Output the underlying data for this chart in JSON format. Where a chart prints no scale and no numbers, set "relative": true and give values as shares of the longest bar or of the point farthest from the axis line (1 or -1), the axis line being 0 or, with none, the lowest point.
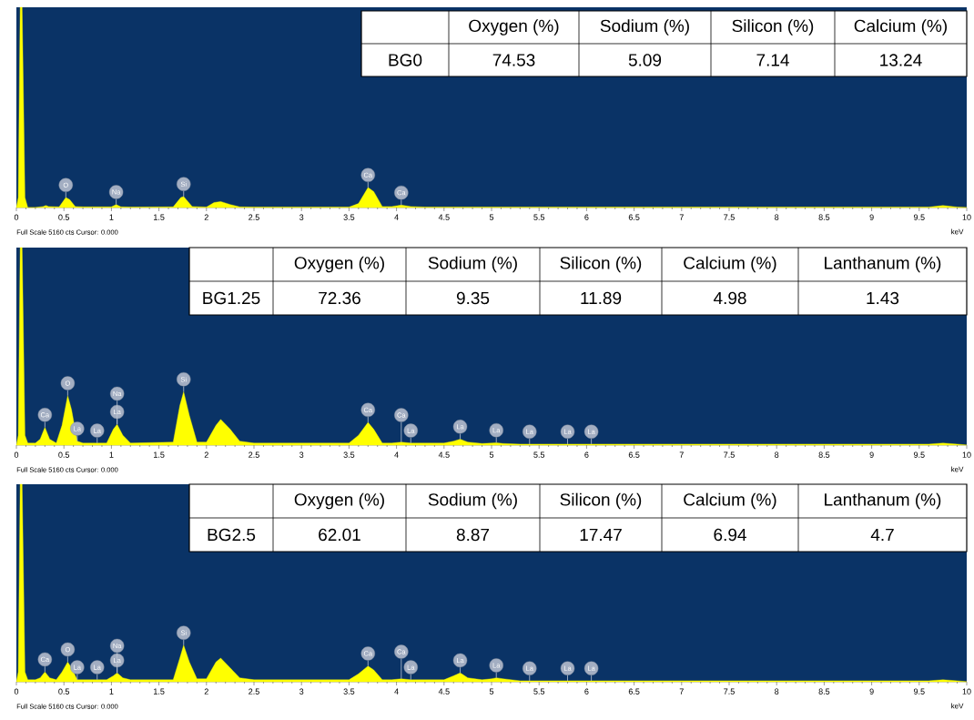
{
  "chart_data": [
    {
      "type": "area",
      "relative": true,
      "color": "#ffff00",
      "xlim": [
        0,
        10
      ],
      "xticks": [
        0,
        0.5,
        1,
        1.5,
        2,
        2.5,
        3,
        3.5,
        4,
        4.5,
        5,
        5.5,
        6,
        6.5,
        7,
        7.5,
        8,
        8.5,
        9,
        9.5,
        10
      ],
      "xlabel": "keV",
      "x": [
        0,
        0.02,
        0.04,
        0.06,
        0.09,
        0.12,
        0.2,
        0.28,
        0.31,
        0.34,
        0.45,
        0.52,
        0.56,
        0.62,
        0.7,
        1.0,
        1.05,
        1.1,
        1.2,
        1.65,
        1.73,
        1.76,
        1.85,
        2.0,
        2.08,
        2.15,
        2.25,
        2.35,
        2.5,
        3.5,
        3.6,
        3.7,
        3.76,
        3.85,
        3.95,
        4.05,
        4.15,
        4.3,
        9.6,
        9.75,
        9.9,
        10
      ],
      "values": [
        0,
        0.05,
        1,
        1,
        0.05,
        0,
        0,
        0.005,
        0.01,
        0.005,
        0.003,
        0.05,
        0.04,
        0.005,
        0.003,
        0.003,
        0.015,
        0.003,
        0.002,
        0.003,
        0.05,
        0.055,
        0.005,
        0.002,
        0.025,
        0.03,
        0.015,
        0.003,
        0.002,
        0.002,
        0.02,
        0.1,
        0.08,
        0.005,
        0.005,
        0.012,
        0.005,
        0.002,
        0.002,
        0.01,
        0.002,
        0
      ],
      "annotations": [
        "Full Scale 5160 cts Cursor: 0.000",
        {
          "text": "O",
          "x": 0.52,
          "y": 0.05
        },
        {
          "text": "Na",
          "x": 1.05,
          "y": 0.015
        },
        {
          "text": "Si",
          "x": 1.76,
          "y": 0.055
        },
        {
          "text": "Ca",
          "x": 3.7,
          "y": 0.1
        },
        {
          "text": "Ca",
          "x": 4.05,
          "y": 0.012
        }
      ]
    },
    {
      "type": "other",
      "title": "BG0",
      "categories": [
        "Oxygen (%)",
        "Sodium (%)",
        "Silicon (%)",
        "Calcium (%)"
      ],
      "values": [
        74.53,
        5.09,
        7.14,
        13.24
      ],
      "data_labels": true
    },
    {
      "type": "area",
      "relative": true,
      "color": "#ffff00",
      "xlim": [
        0,
        10
      ],
      "xticks": [
        0,
        0.5,
        1,
        1.5,
        2,
        2.5,
        3,
        3.5,
        4,
        4.5,
        5,
        5.5,
        6,
        6.5,
        7,
        7.5,
        8,
        8.5,
        9,
        9.5,
        10
      ],
      "xlabel": "keV",
      "x": [
        0,
        0.02,
        0.04,
        0.06,
        0.09,
        0.12,
        0.2,
        0.25,
        0.3,
        0.35,
        0.42,
        0.48,
        0.54,
        0.58,
        0.64,
        0.7,
        0.85,
        0.95,
        1.02,
        1.06,
        1.12,
        1.2,
        1.65,
        1.72,
        1.76,
        1.82,
        1.9,
        2.0,
        2.1,
        2.15,
        2.25,
        2.35,
        2.5,
        3.5,
        3.6,
        3.7,
        3.76,
        3.85,
        3.95,
        4.05,
        4.15,
        4.5,
        4.6,
        4.67,
        4.75,
        4.9,
        5.0,
        5.05,
        5.12,
        5.3,
        5.4,
        5.8,
        6.05,
        9.6,
        9.75,
        9.9,
        10
      ],
      "values": [
        0,
        0.05,
        1,
        1,
        0.05,
        0.01,
        0.01,
        0.03,
        0.09,
        0.03,
        0.01,
        0.1,
        0.25,
        0.18,
        0.02,
        0.01,
        0.01,
        0.01,
        0.08,
        0.105,
        0.05,
        0.01,
        0.015,
        0.2,
        0.27,
        0.15,
        0.015,
        0.015,
        0.1,
        0.13,
        0.08,
        0.02,
        0.01,
        0.01,
        0.05,
        0.115,
        0.08,
        0.01,
        0.01,
        0.015,
        0.01,
        0.01,
        0.02,
        0.03,
        0.015,
        0.008,
        0.01,
        0.012,
        0.008,
        0.005,
        0.005,
        0.005,
        0.005,
        0.005,
        0.01,
        0.005,
        0
      ],
      "annotations": [
        "Full Scale 5160 cts Cursor: 0.000",
        {
          "text": "Ca",
          "x": 0.3,
          "y": 0.09
        },
        {
          "text": "O",
          "x": 0.54,
          "y": 0.25
        },
        {
          "text": "La",
          "x": 0.64,
          "y": 0.02
        },
        {
          "text": "La",
          "x": 0.85,
          "y": 0.01
        },
        {
          "text": "La",
          "x": 1.06,
          "y": 0.105
        },
        {
          "text": "Na",
          "x": 1.06,
          "y": 0.105
        },
        {
          "text": "Si",
          "x": 1.76,
          "y": 0.27
        },
        {
          "text": "Ca",
          "x": 3.7,
          "y": 0.115
        },
        {
          "text": "La",
          "x": 4.15,
          "y": 0.01
        },
        {
          "text": "Ca",
          "x": 4.05,
          "y": 0.015
        },
        {
          "text": "La",
          "x": 4.67,
          "y": 0.03
        },
        {
          "text": "La",
          "x": 5.05,
          "y": 0.012
        },
        {
          "text": "La",
          "x": 5.4,
          "y": 0.005
        },
        {
          "text": "La",
          "x": 5.8,
          "y": 0.005
        },
        {
          "text": "La",
          "x": 6.05,
          "y": 0.005
        }
      ]
    },
    {
      "type": "other",
      "title": "BG1.25",
      "categories": [
        "Oxygen (%)",
        "Sodium (%)",
        "Silicon (%)",
        "Calcium (%)",
        "Lanthanum (%)"
      ],
      "values": [
        72.36,
        9.35,
        11.89,
        4.98,
        1.43
      ],
      "data_labels": true
    },
    {
      "type": "area",
      "relative": true,
      "color": "#ffff00",
      "xlim": [
        0,
        10
      ],
      "xticks": [
        0,
        0.5,
        1,
        1.5,
        2,
        2.5,
        3,
        3.5,
        4,
        4.5,
        5,
        5.5,
        6,
        6.5,
        7,
        7.5,
        8,
        8.5,
        9,
        9.5,
        10
      ],
      "xlabel": "keV",
      "x": [
        0,
        0.02,
        0.04,
        0.06,
        0.09,
        0.12,
        0.2,
        0.25,
        0.3,
        0.35,
        0.42,
        0.48,
        0.54,
        0.58,
        0.64,
        0.7,
        0.85,
        0.95,
        1.02,
        1.06,
        1.12,
        1.2,
        1.65,
        1.72,
        1.76,
        1.82,
        1.9,
        2.0,
        2.1,
        2.15,
        2.25,
        2.35,
        2.5,
        3.5,
        3.6,
        3.7,
        3.76,
        3.85,
        3.95,
        4.05,
        4.15,
        4.5,
        4.6,
        4.67,
        4.75,
        4.9,
        5.0,
        5.05,
        5.12,
        5.3,
        5.4,
        5.8,
        6.05,
        9.6,
        9.75,
        9.9,
        10
      ],
      "values": [
        0,
        0.05,
        1,
        1,
        0.05,
        0.01,
        0.01,
        0.02,
        0.05,
        0.02,
        0.01,
        0.05,
        0.1,
        0.07,
        0.01,
        0.01,
        0.01,
        0.01,
        0.03,
        0.045,
        0.02,
        0.01,
        0.01,
        0.12,
        0.185,
        0.1,
        0.015,
        0.015,
        0.1,
        0.12,
        0.07,
        0.02,
        0.01,
        0.01,
        0.04,
        0.08,
        0.06,
        0.01,
        0.01,
        0.015,
        0.01,
        0.01,
        0.03,
        0.045,
        0.02,
        0.01,
        0.015,
        0.02,
        0.015,
        0.005,
        0.005,
        0.005,
        0.005,
        0.005,
        0.01,
        0.005,
        0
      ],
      "annotations": [
        "Full Scale 5160 cts Cursor: 0.000",
        {
          "text": "Ca",
          "x": 0.3,
          "y": 0.05
        },
        {
          "text": "O",
          "x": 0.54,
          "y": 0.1
        },
        {
          "text": "La",
          "x": 0.64,
          "y": 0.01
        },
        {
          "text": "La",
          "x": 0.85,
          "y": 0.01
        },
        {
          "text": "La",
          "x": 1.06,
          "y": 0.045
        },
        {
          "text": "Na",
          "x": 1.06,
          "y": 0.045
        },
        {
          "text": "Si",
          "x": 1.76,
          "y": 0.185
        },
        {
          "text": "Ca",
          "x": 3.7,
          "y": 0.08
        },
        {
          "text": "La",
          "x": 4.15,
          "y": 0.01
        },
        {
          "text": "Ca",
          "x": 4.05,
          "y": 0.015
        },
        {
          "text": "La",
          "x": 4.67,
          "y": 0.045
        },
        {
          "text": "La",
          "x": 5.05,
          "y": 0.02
        },
        {
          "text": "La",
          "x": 5.4,
          "y": 0.005
        },
        {
          "text": "La",
          "x": 5.8,
          "y": 0.005
        },
        {
          "text": "La",
          "x": 6.05,
          "y": 0.005
        }
      ]
    },
    {
      "type": "other",
      "title": "BG2.5",
      "categories": [
        "Oxygen (%)",
        "Sodium (%)",
        "Silicon (%)",
        "Calcium (%)",
        "Lanthanum (%)"
      ],
      "values": [
        62.01,
        8.87,
        17.47,
        6.94,
        4.7
      ],
      "data_labels": true
    }
  ]
}
